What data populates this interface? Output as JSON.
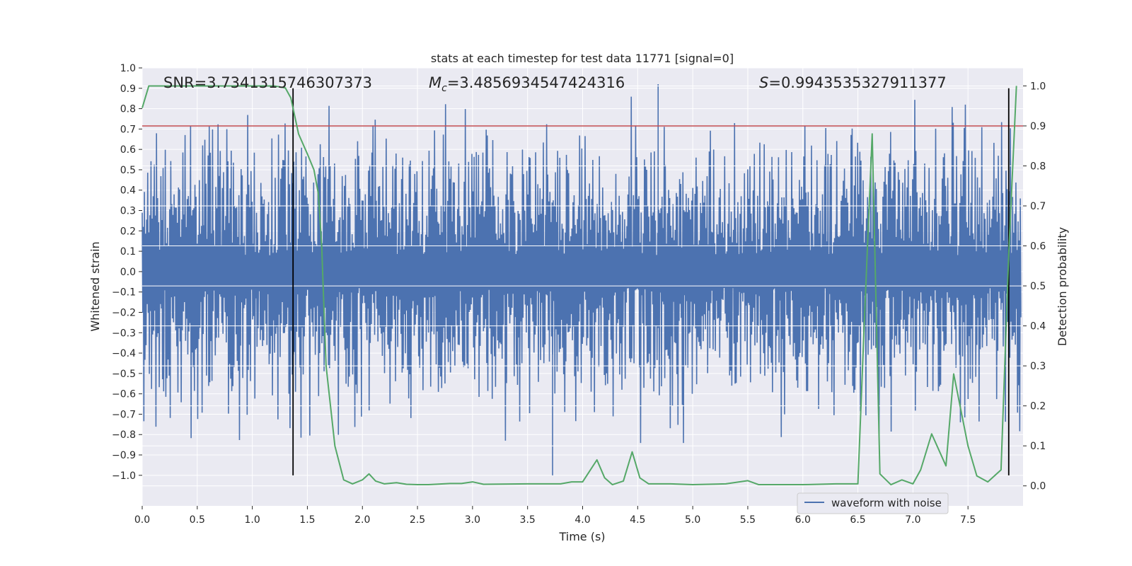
{
  "chart_data": {
    "type": "line",
    "title": "stats at each timestep for test data 11771 [signal=0]",
    "xlabel": "Time (s)",
    "ylabel": "Whitened strain",
    "y2label": "Detection probability",
    "xlim": [
      0.0,
      8.0
    ],
    "ylim": [
      -1.15,
      1.0
    ],
    "y2lim": [
      -0.05,
      1.045
    ],
    "x_ticks": [
      0.0,
      0.5,
      1.0,
      1.5,
      2.0,
      2.5,
      3.0,
      3.5,
      4.0,
      4.5,
      5.0,
      5.5,
      6.0,
      6.5,
      7.0,
      7.5
    ],
    "y_ticks": [
      -1.0,
      -0.9,
      -0.8,
      -0.7,
      -0.6,
      -0.5,
      -0.4,
      -0.3,
      -0.2,
      -0.1,
      0.0,
      0.1,
      0.2,
      0.3,
      0.4,
      0.5,
      0.6,
      0.7,
      0.8,
      0.9,
      1.0
    ],
    "y2_ticks": [
      0.0,
      0.1,
      0.2,
      0.3,
      0.4,
      0.5,
      0.6,
      0.7,
      0.8,
      0.9,
      1.0
    ],
    "grid": true,
    "legend": {
      "position": "lower-right",
      "entries": [
        "waveform with noise"
      ]
    },
    "annotations": {
      "snr_label": "SNR",
      "snr_value": "=3.7341315746307373",
      "mc_symbol": "M",
      "mc_subscript": "c",
      "mc_value": "=3.4856934547424316",
      "s_symbol": "S",
      "s_value": "=0.9943535327911377"
    },
    "threshold": {
      "value": 0.9,
      "axis": "y2",
      "color": "#c44e52"
    },
    "vlines": {
      "x": [
        1.37,
        7.87
      ],
      "ymin": -1.0,
      "ymax": 0.9,
      "color": "#000000"
    },
    "series": [
      {
        "name": "waveform with noise",
        "axis": "y",
        "color": "#4c72b0",
        "samples": 1600,
        "typical_peak_range": [
          0.35,
          0.6
        ],
        "max_excursions": [
          0.92,
          -1.0
        ]
      },
      {
        "name": "detection probability",
        "axis": "y2",
        "color": "#55a868",
        "x": [
          0.0,
          0.06,
          0.2,
          0.5,
          0.8,
          1.0,
          1.2,
          1.3,
          1.35,
          1.42,
          1.5,
          1.56,
          1.6,
          1.63,
          1.67,
          1.75,
          1.83,
          1.91,
          2.0,
          2.06,
          2.12,
          2.2,
          2.31,
          2.4,
          2.5,
          2.6,
          2.8,
          2.9,
          3.0,
          3.1,
          3.5,
          3.8,
          3.9,
          4.0,
          4.13,
          4.2,
          4.27,
          4.37,
          4.45,
          4.52,
          4.6,
          4.8,
          5.0,
          5.3,
          5.5,
          5.6,
          6.0,
          6.3,
          6.5,
          6.56,
          6.63,
          6.7,
          6.8,
          6.9,
          7.0,
          7.07,
          7.17,
          7.3,
          7.37,
          7.5,
          7.58,
          7.68,
          7.8,
          7.87,
          7.94
        ],
        "values": [
          0.945,
          1.0,
          1.0,
          1.0,
          1.0,
          1.0,
          1.0,
          0.995,
          0.97,
          0.88,
          0.83,
          0.79,
          0.73,
          0.6,
          0.3,
          0.1,
          0.015,
          0.005,
          0.015,
          0.03,
          0.012,
          0.005,
          0.008,
          0.004,
          0.003,
          0.003,
          0.006,
          0.006,
          0.01,
          0.004,
          0.005,
          0.005,
          0.01,
          0.01,
          0.065,
          0.02,
          0.003,
          0.012,
          0.085,
          0.02,
          0.005,
          0.005,
          0.003,
          0.005,
          0.013,
          0.003,
          0.003,
          0.005,
          0.005,
          0.42,
          0.88,
          0.03,
          0.003,
          0.015,
          0.005,
          0.04,
          0.13,
          0.05,
          0.28,
          0.1,
          0.025,
          0.01,
          0.04,
          0.58,
          1.0
        ]
      }
    ]
  }
}
